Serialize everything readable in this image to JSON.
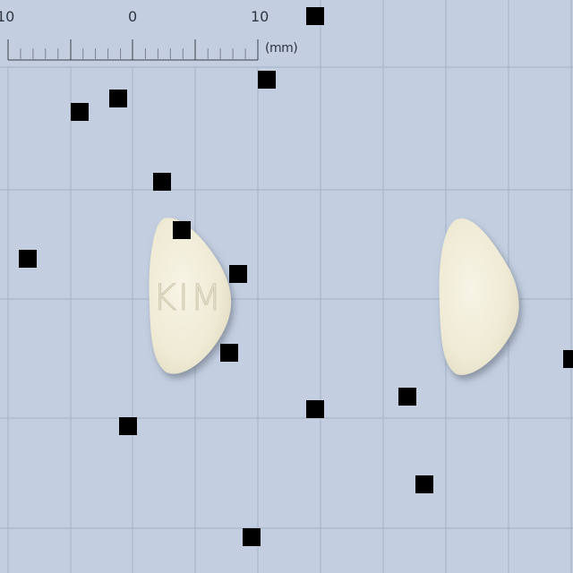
{
  "ruler": {
    "labels": [
      "10",
      "0",
      "10"
    ],
    "unit": "(mm)"
  },
  "pill_front": {
    "imprint": "KIM",
    "color": "#f2eedb"
  },
  "pill_back": {
    "imprint": "",
    "color": "#f2eedb"
  },
  "colors": {
    "background": "#c3cfe1",
    "grid_line": "#a9b8cc",
    "ruler_line": "#3a4048",
    "marker": "#000000"
  },
  "marker_count": 17
}
